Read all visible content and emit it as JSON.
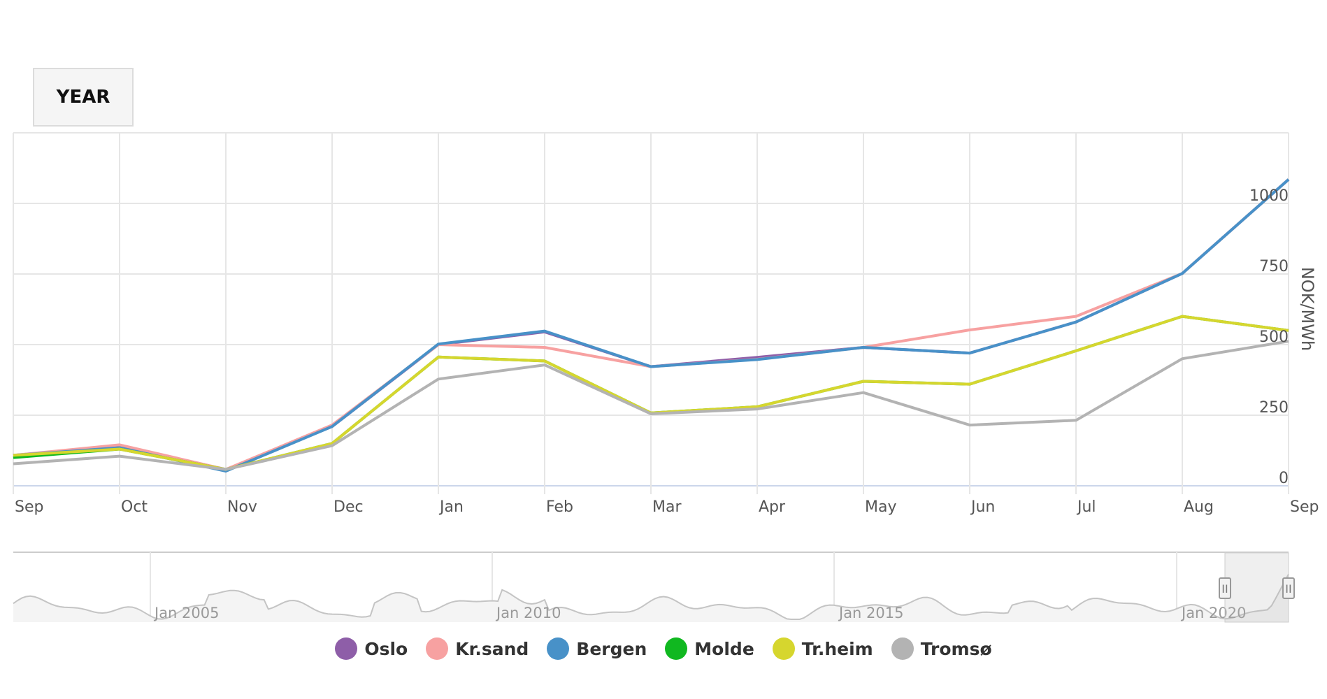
{
  "toolbar": {
    "range_button": "YEAR"
  },
  "chart_data": {
    "type": "line",
    "xlabel": "",
    "ylabel": "NOK/MWh",
    "ylim": [
      0,
      1250
    ],
    "yticks": [
      0,
      250,
      500,
      750,
      1000
    ],
    "grid": true,
    "legend_position": "bottom",
    "categories": [
      "Sep",
      "Oct",
      "Nov",
      "Dec",
      "Jan",
      "Feb",
      "Mar",
      "Apr",
      "May",
      "Jun",
      "Jul",
      "Aug",
      "Sep"
    ],
    "series": [
      {
        "name": "Oslo",
        "color": "#8e5ea8",
        "values": [
          108,
          140,
          58,
          210,
          500,
          545,
          422,
          455,
          490,
          470,
          580,
          752,
          1085
        ]
      },
      {
        "name": "Kr.sand",
        "color": "#f7a1a1",
        "values": [
          108,
          145,
          58,
          215,
          500,
          490,
          422,
          448,
          490,
          552,
          600,
          752,
          1085
        ]
      },
      {
        "name": "Bergen",
        "color": "#4891c8",
        "values": [
          108,
          135,
          52,
          210,
          502,
          548,
          422,
          447,
          490,
          470,
          580,
          752,
          1085
        ]
      },
      {
        "name": "Molde",
        "color": "#10b820",
        "values": [
          100,
          130,
          58,
          150,
          456,
          442,
          258,
          280,
          370,
          360,
          478,
          600,
          550
        ]
      },
      {
        "name": "Tr.heim",
        "color": "#d6d62e",
        "values": [
          108,
          130,
          58,
          150,
          456,
          442,
          258,
          280,
          370,
          360,
          478,
          600,
          550
        ]
      },
      {
        "name": "Tromsø",
        "color": "#b3b3b3",
        "values": [
          78,
          105,
          58,
          142,
          378,
          428,
          255,
          272,
          330,
          215,
          232,
          450,
          512
        ]
      }
    ],
    "navigator": {
      "labels": [
        "Jan 2005",
        "Jan 2010",
        "Jan 2015",
        "Jan 2020"
      ],
      "handle_glyph": "II"
    }
  }
}
